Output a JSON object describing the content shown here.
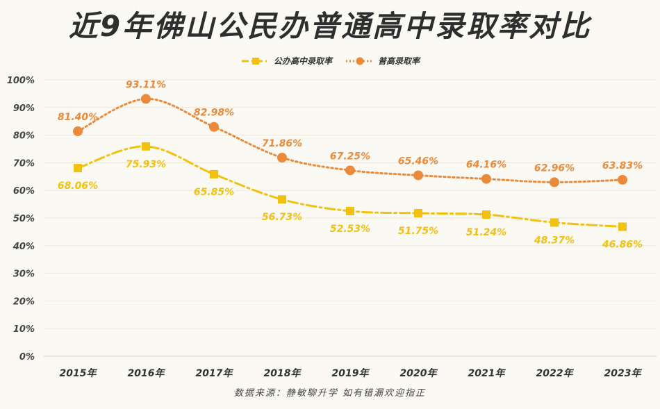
{
  "title": "近9年佛山公民办普通高中录取率对比",
  "source": "数据来源：静敏聊升学  如有错漏欢迎指正",
  "chart_data": {
    "type": "line",
    "title": "近9年佛山公民办普通高中录取率对比",
    "categories": [
      "2015年",
      "2016年",
      "2017年",
      "2018年",
      "2019年",
      "2020年",
      "2021年",
      "2022年",
      "2023年"
    ],
    "series": [
      {
        "name": "公办高中录取率",
        "color": "#f2c10f",
        "marker": "square",
        "values": [
          68.06,
          75.93,
          65.85,
          56.73,
          52.53,
          51.75,
          51.24,
          48.37,
          46.86
        ],
        "labels": [
          "68.06%",
          "75.93%",
          "65.85%",
          "56.73%",
          "52.53%",
          "51.75%",
          "51.24%",
          "48.37%",
          "46.86%"
        ]
      },
      {
        "name": "普高录取率",
        "color": "#ea8a3a",
        "marker": "circle",
        "values": [
          81.4,
          93.11,
          82.98,
          71.86,
          67.25,
          65.46,
          64.16,
          62.96,
          63.83
        ],
        "labels": [
          "81.40%",
          "93.11%",
          "82.98%",
          "71.86%",
          "67.25%",
          "65.46%",
          "64.16%",
          "62.96%",
          "63.83%"
        ]
      }
    ],
    "ylim": [
      0,
      100
    ],
    "yticks": [
      "0%",
      "10%",
      "20%",
      "30%",
      "40%",
      "50%",
      "60%",
      "70%",
      "80%",
      "90%",
      "100%"
    ],
    "grid": true,
    "legend_position": "top-center"
  }
}
